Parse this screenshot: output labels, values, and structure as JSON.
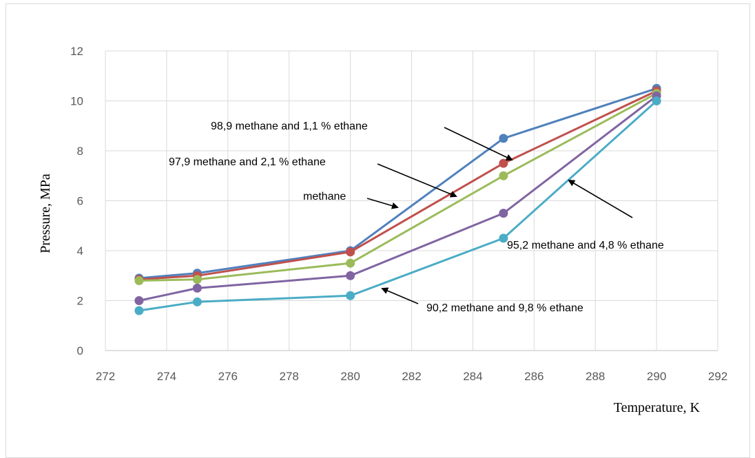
{
  "chart_data": {
    "type": "line",
    "title": "",
    "xlabel": "Temperature, K",
    "ylabel": "Pressure, MPa",
    "xlim": [
      272,
      292
    ],
    "ylim": [
      0,
      12
    ],
    "x_ticks": [
      272,
      274,
      276,
      278,
      280,
      282,
      284,
      286,
      288,
      290,
      292
    ],
    "y_ticks": [
      0,
      2,
      4,
      6,
      8,
      10,
      12
    ],
    "grid": true,
    "legend": "none",
    "x": [
      273.1,
      275,
      280,
      285,
      290
    ],
    "series": [
      {
        "name": "98,9 methane and 1,1 % ethane",
        "color": "#4f81bd",
        "values": [
          2.9,
          3.1,
          4.0,
          8.5,
          10.5
        ]
      },
      {
        "name": "97,9 methane and 2,1 % ethane",
        "color": "#c0504d",
        "values": [
          2.85,
          3.0,
          3.95,
          7.5,
          10.4
        ]
      },
      {
        "name": "methane",
        "color": "#9bbb59",
        "values": [
          2.8,
          2.85,
          3.5,
          7.0,
          10.3
        ]
      },
      {
        "name": "95,2 methane and 4,8 % ethane",
        "color": "#8064a2",
        "values": [
          2.0,
          2.5,
          3.0,
          5.5,
          10.2
        ]
      },
      {
        "name": "90,2 methane and 9,8 % ethane",
        "color": "#4bacc6",
        "values": [
          1.6,
          1.95,
          2.2,
          4.5,
          10.0
        ]
      }
    ],
    "annotations": [
      {
        "text": "98,9 methane and 1,1 % ethane",
        "series_index": 0
      },
      {
        "text": "97,9 methane and 2,1 % ethane",
        "series_index": 1
      },
      {
        "text": "methane",
        "series_index": 2
      },
      {
        "text": "95,2 methane and 4,8 % ethane",
        "series_index": 3
      },
      {
        "text": "90,2 methane and 9,8 % ethane",
        "series_index": 4
      }
    ]
  }
}
